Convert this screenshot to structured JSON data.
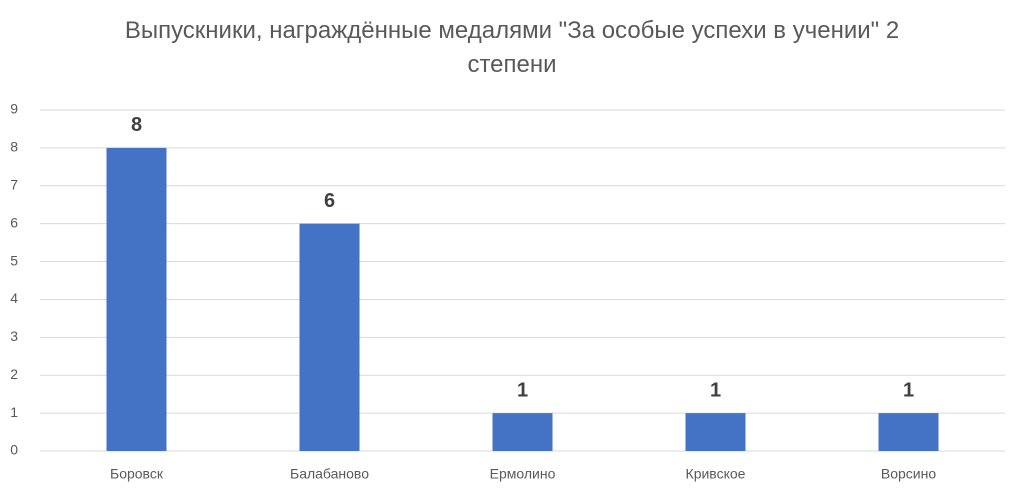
{
  "chart_data": {
    "type": "bar",
    "title": "Выпускники, награждённые медалями \"За особые успехи в учении\" 2 степени",
    "categories": [
      "Боровск",
      "Балабаново",
      "Ермолино",
      "Кривское",
      "Ворсино"
    ],
    "values": [
      8,
      6,
      1,
      1,
      1
    ],
    "color": "#4472c4",
    "ylim": [
      0,
      9
    ],
    "yticks": [
      0,
      1,
      2,
      3,
      4,
      5,
      6,
      7,
      8,
      9
    ],
    "grid": true
  }
}
